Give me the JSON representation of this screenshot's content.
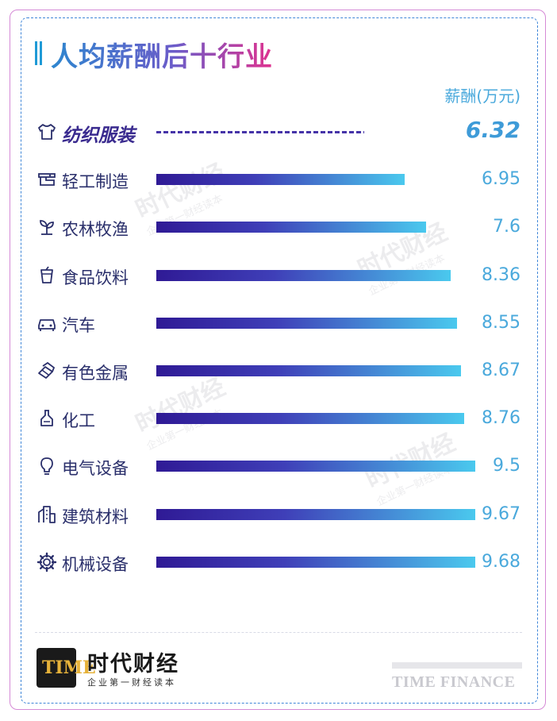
{
  "title": "人均薪酬后十行业",
  "unit_label": "薪酬(万元)",
  "watermark": {
    "name": "时代财经",
    "slogan": "企业第一财经读本"
  },
  "footer": {
    "logo_text": "TIME",
    "brand_cn": "时代财经",
    "brand_slogan": "企业第一财经读本",
    "brand_en": "TIME FINANCE"
  },
  "chart_data": {
    "type": "bar",
    "orientation": "horizontal",
    "title": "人均薪酬后十行业",
    "ylabel": "薪酬(万元)",
    "categories": [
      "纺织服装",
      "轻工制造",
      "农林牧渔",
      "食品饮料",
      "汽车",
      "有色金属",
      "化工",
      "电气设备",
      "建筑材料",
      "机械设备"
    ],
    "values": [
      6.32,
      6.95,
      7.6,
      8.36,
      8.55,
      8.67,
      8.76,
      9.5,
      9.67,
      9.68
    ],
    "value_labels": [
      "6.32",
      "6.95",
      "7.6",
      "8.36",
      "8.55",
      "8.67",
      "8.76",
      "9.5",
      "9.67",
      "9.68"
    ],
    "icons": [
      "tshirt-icon",
      "sewing-machine-icon",
      "plant-icon",
      "cup-icon",
      "car-icon",
      "metal-bars-icon",
      "chemical-icon",
      "lightbulb-icon",
      "building-icon",
      "gear-icon"
    ],
    "bar_colors": [
      "#2f1a95",
      "#4ac9ee"
    ],
    "highlight_color": "#3a2b8f",
    "value_color": "#4aa9dc"
  }
}
